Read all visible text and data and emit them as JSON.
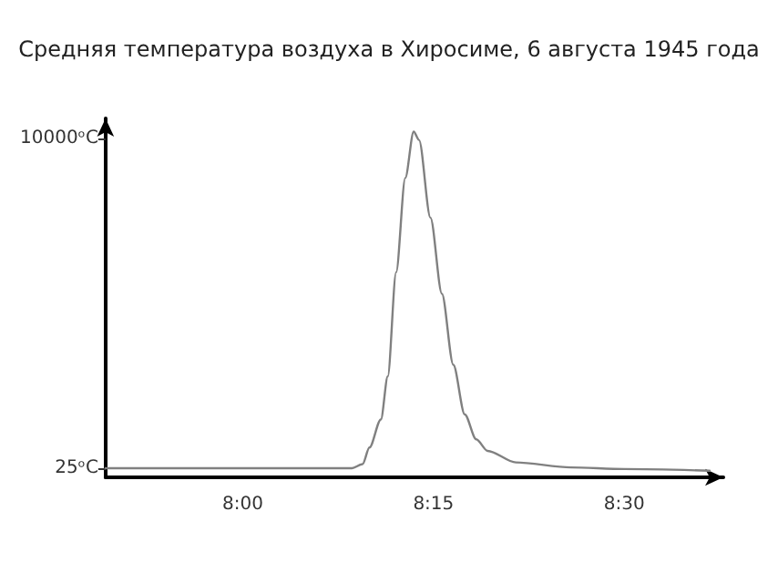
{
  "chart_data": {
    "type": "line",
    "title": "Средняя температура воздуха в Хиросиме, 6 августа 1945 года",
    "x": [
      7.82,
      8.0,
      8.1,
      8.143,
      8.157,
      8.166,
      8.181,
      8.19,
      8.201,
      8.213,
      8.224,
      8.231,
      8.246,
      8.261,
      8.276,
      8.291,
      8.306,
      8.321,
      8.358,
      8.43,
      8.5,
      8.612
    ],
    "values": [
      25,
      25,
      25,
      25,
      150,
      650,
      1500,
      2800,
      5950,
      8800,
      10200,
      9950,
      7600,
      5300,
      3150,
      1650,
      900,
      550,
      200,
      50,
      0,
      -50
    ],
    "color": "#808080",
    "marker": "none",
    "line_style": "solid",
    "grid": false,
    "xlim": [
      7.82,
      8.63
    ],
    "ylim": [
      -250,
      10600
    ],
    "xticks": [
      {
        "value": 8,
        "label": "8:00"
      },
      {
        "value": 8.25,
        "label": "8:15"
      },
      {
        "value": 8.5,
        "label": "8:30"
      }
    ],
    "yticks": [
      {
        "value": 25,
        "label": "25ᵒC"
      },
      {
        "value": 10000,
        "label": "10000ᵒC"
      }
    ]
  }
}
